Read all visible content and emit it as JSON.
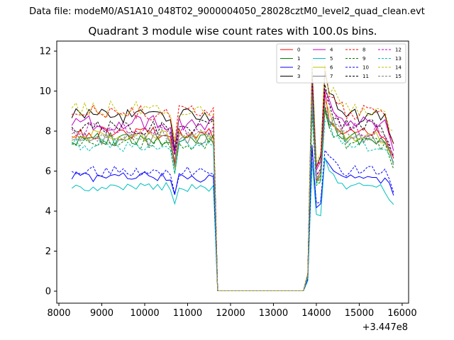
{
  "chart_data": {
    "type": "line",
    "suptitle": "Data file: modeM0/AS1A10_048T02_9000004050_28028cztM0_level2_quad_clean.evt",
    "title": "Quadrant 3 module wise count rates with 100.0s bins.",
    "xlabel": "",
    "ylabel": "",
    "x_offset_label": "+3.447e8",
    "xlim": [
      7950,
      16150
    ],
    "ylim": [
      -0.6,
      12.5
    ],
    "xticks": [
      8000,
      9000,
      10000,
      11000,
      12000,
      13000,
      14000,
      15000,
      16000
    ],
    "yticks": [
      0,
      2,
      4,
      6,
      8,
      10,
      12
    ],
    "legend_location": "upper right",
    "shape_x": [
      8300,
      8800,
      9300,
      9800,
      10300,
      10600,
      10700,
      10800,
      11000,
      11400,
      11600,
      11650,
      11700,
      12000,
      12500,
      13000,
      13500,
      13700,
      13800,
      13850,
      13900,
      14000,
      14100,
      14200,
      14300,
      14500,
      14700,
      15000,
      15300,
      15600,
      15800
    ],
    "shape_base": [
      1.0,
      1.0,
      1.0,
      1.0,
      1.0,
      1.0,
      0.82,
      1.0,
      1.0,
      1.0,
      1.0,
      0.45,
      0.0,
      0.0,
      0.0,
      0.0,
      0.0,
      0.0,
      0.1,
      0.75,
      1.25,
      0.72,
      0.75,
      1.22,
      1.12,
      1.05,
      1.0,
      1.0,
      1.0,
      0.98,
      0.85
    ],
    "series": [
      {
        "name": "0",
        "color": "#ff0000",
        "dashed": false,
        "level": 7.9
      },
      {
        "name": "1",
        "color": "#008000",
        "dashed": false,
        "level": 7.6
      },
      {
        "name": "2",
        "color": "#0000ff",
        "dashed": false,
        "level": 5.7
      },
      {
        "name": "3",
        "color": "#000000",
        "dashed": false,
        "level": 8.8
      },
      {
        "name": "4",
        "color": "#bf00bf",
        "dashed": false,
        "level": 8.4
      },
      {
        "name": "5",
        "color": "#00bfbf",
        "dashed": false,
        "level": 5.2
      },
      {
        "name": "6",
        "color": "#bfbf00",
        "dashed": false,
        "level": 7.7
      },
      {
        "name": "7",
        "color": "#808080",
        "dashed": false,
        "level": 7.6
      },
      {
        "name": "8",
        "color": "#ff0000",
        "dashed": true,
        "level": 8.9
      },
      {
        "name": "9",
        "color": "#008000",
        "dashed": true,
        "level": 7.4
      },
      {
        "name": "10",
        "color": "#0000ff",
        "dashed": true,
        "level": 6.0
      },
      {
        "name": "11",
        "color": "#000000",
        "dashed": true,
        "level": 8.2
      },
      {
        "name": "12",
        "color": "#bf00bf",
        "dashed": true,
        "level": 8.1
      },
      {
        "name": "13",
        "color": "#00bfbf",
        "dashed": true,
        "level": 7.3
      },
      {
        "name": "14",
        "color": "#bfbf00",
        "dashed": true,
        "level": 9.1
      },
      {
        "name": "15",
        "color": "#808080",
        "dashed": true,
        "level": 7.8
      }
    ]
  }
}
